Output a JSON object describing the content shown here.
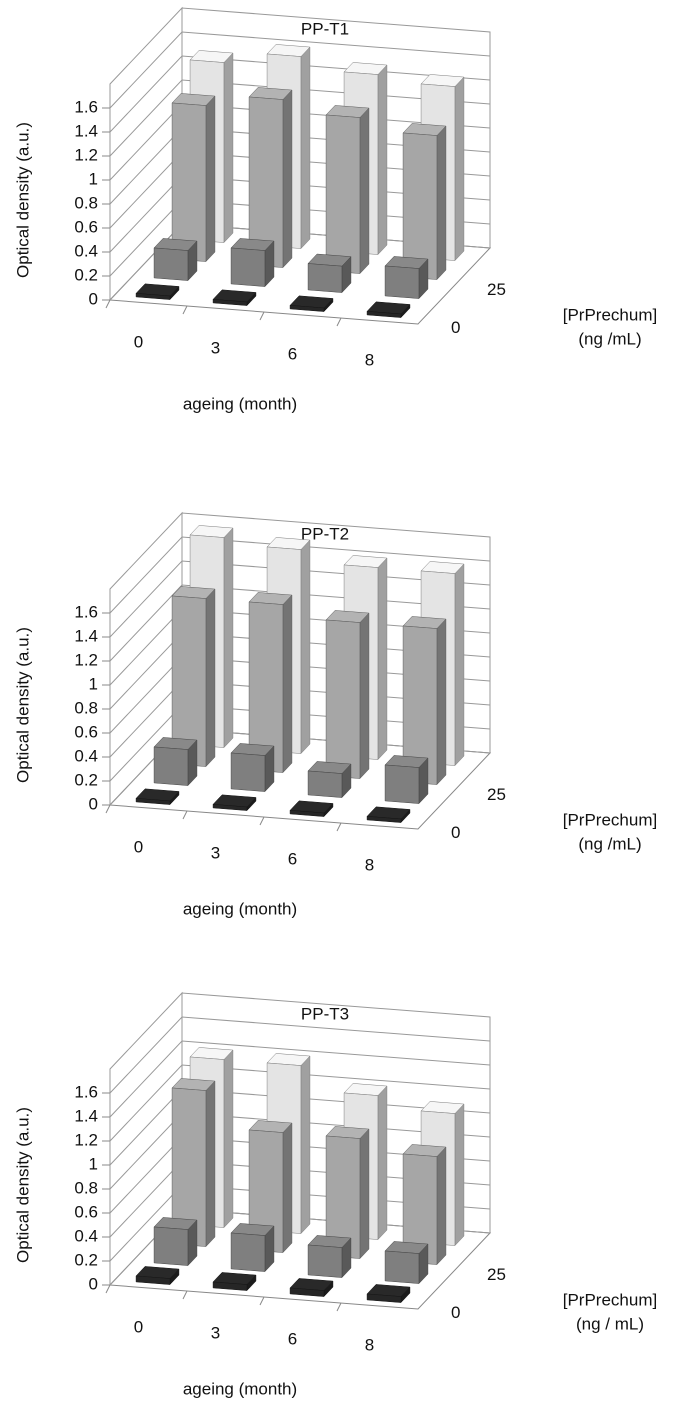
{
  "chart_data": [
    {
      "type": "bar3d",
      "title": "PP-T1",
      "y_title": "Optical density (a.u.)",
      "x_title": "ageing (month)",
      "z_title": [
        "[PrPrechum]",
        "(ng /mL)"
      ],
      "categories": [
        "0",
        "3",
        "6",
        "8"
      ],
      "series": [
        {
          "name": "0",
          "color": "#262626",
          "values": [
            0.03,
            0.03,
            0.03,
            0.03
          ]
        },
        {
          "name": null,
          "color": "#7f7f7f",
          "values": [
            0.25,
            0.3,
            0.22,
            0.25
          ]
        },
        {
          "name": "25",
          "color": "#a6a6a6",
          "values": [
            1.3,
            1.4,
            1.3,
            1.2
          ]
        },
        {
          "name": null,
          "color": "#e4e4e4",
          "values": [
            1.5,
            1.6,
            1.5,
            1.45
          ]
        }
      ],
      "ylim": [
        0,
        1.8
      ],
      "yticks": [
        0,
        0.2,
        0.4,
        0.6,
        0.8,
        1,
        1.2,
        1.4,
        1.6
      ],
      "grid": true
    },
    {
      "type": "bar3d",
      "title": "PP-T2",
      "y_title": "Optical density (a.u.)",
      "x_title": "ageing (month)",
      "z_title": [
        "[PrPrechum]",
        "(ng /mL)"
      ],
      "categories": [
        "0",
        "3",
        "6",
        "8"
      ],
      "series": [
        {
          "name": "0",
          "color": "#262626",
          "values": [
            0.03,
            0.03,
            0.03,
            0.03
          ]
        },
        {
          "name": null,
          "color": "#7f7f7f",
          "values": [
            0.3,
            0.3,
            0.2,
            0.3
          ]
        },
        {
          "name": "25",
          "color": "#a6a6a6",
          "values": [
            1.4,
            1.4,
            1.3,
            1.3
          ]
        },
        {
          "name": null,
          "color": "#e4e4e4",
          "values": [
            1.75,
            1.7,
            1.6,
            1.6
          ]
        }
      ],
      "ylim": [
        0,
        1.8
      ],
      "yticks": [
        0,
        0.2,
        0.4,
        0.6,
        0.8,
        1,
        1.2,
        1.4,
        1.6
      ],
      "grid": true
    },
    {
      "type": "bar3d",
      "title": "PP-T3",
      "y_title": "Optical density (a.u.)",
      "x_title": "ageing (month)",
      "z_title": [
        "[PrPrechum]",
        "(ng / mL)"
      ],
      "categories": [
        "0",
        "3",
        "6",
        "8"
      ],
      "series": [
        {
          "name": "0",
          "color": "#262626",
          "values": [
            0.05,
            0.05,
            0.05,
            0.05
          ]
        },
        {
          "name": null,
          "color": "#7f7f7f",
          "values": [
            0.3,
            0.3,
            0.25,
            0.25
          ]
        },
        {
          "name": "25",
          "color": "#a6a6a6",
          "values": [
            1.3,
            1.0,
            1.0,
            0.9
          ]
        },
        {
          "name": null,
          "color": "#e4e4e4",
          "values": [
            1.4,
            1.4,
            1.2,
            1.1
          ]
        }
      ],
      "ylim": [
        0,
        1.8
      ],
      "yticks": [
        0,
        0.2,
        0.4,
        0.6,
        0.8,
        1,
        1.2,
        1.4,
        1.6
      ],
      "grid": true
    }
  ]
}
